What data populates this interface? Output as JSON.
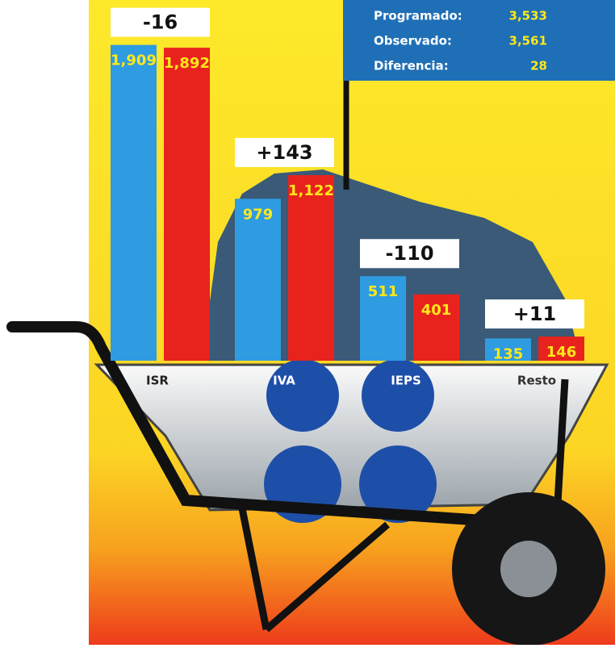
{
  "chart_data": {
    "type": "bar",
    "categories": [
      "ISR",
      "IVA",
      "IEPS",
      "Resto"
    ],
    "series": [
      {
        "color": "#2f9be0",
        "values": [
          1909,
          979,
          511,
          135
        ],
        "value_labels": [
          "1,909",
          "979",
          "511",
          "135"
        ]
      },
      {
        "color": "#e8231e",
        "values": [
          1892,
          1122,
          401,
          146
        ],
        "value_labels": [
          "1,892",
          "1,122",
          "401",
          "146"
        ]
      }
    ],
    "annotations": [
      "-16",
      "+143",
      "-110",
      "+11"
    ],
    "summary": [
      {
        "label": "Programado:",
        "value": "3,533"
      },
      {
        "label": "Observado:",
        "value": "3,561"
      },
      {
        "label": "Diferencia:",
        "value": "28"
      }
    ]
  }
}
